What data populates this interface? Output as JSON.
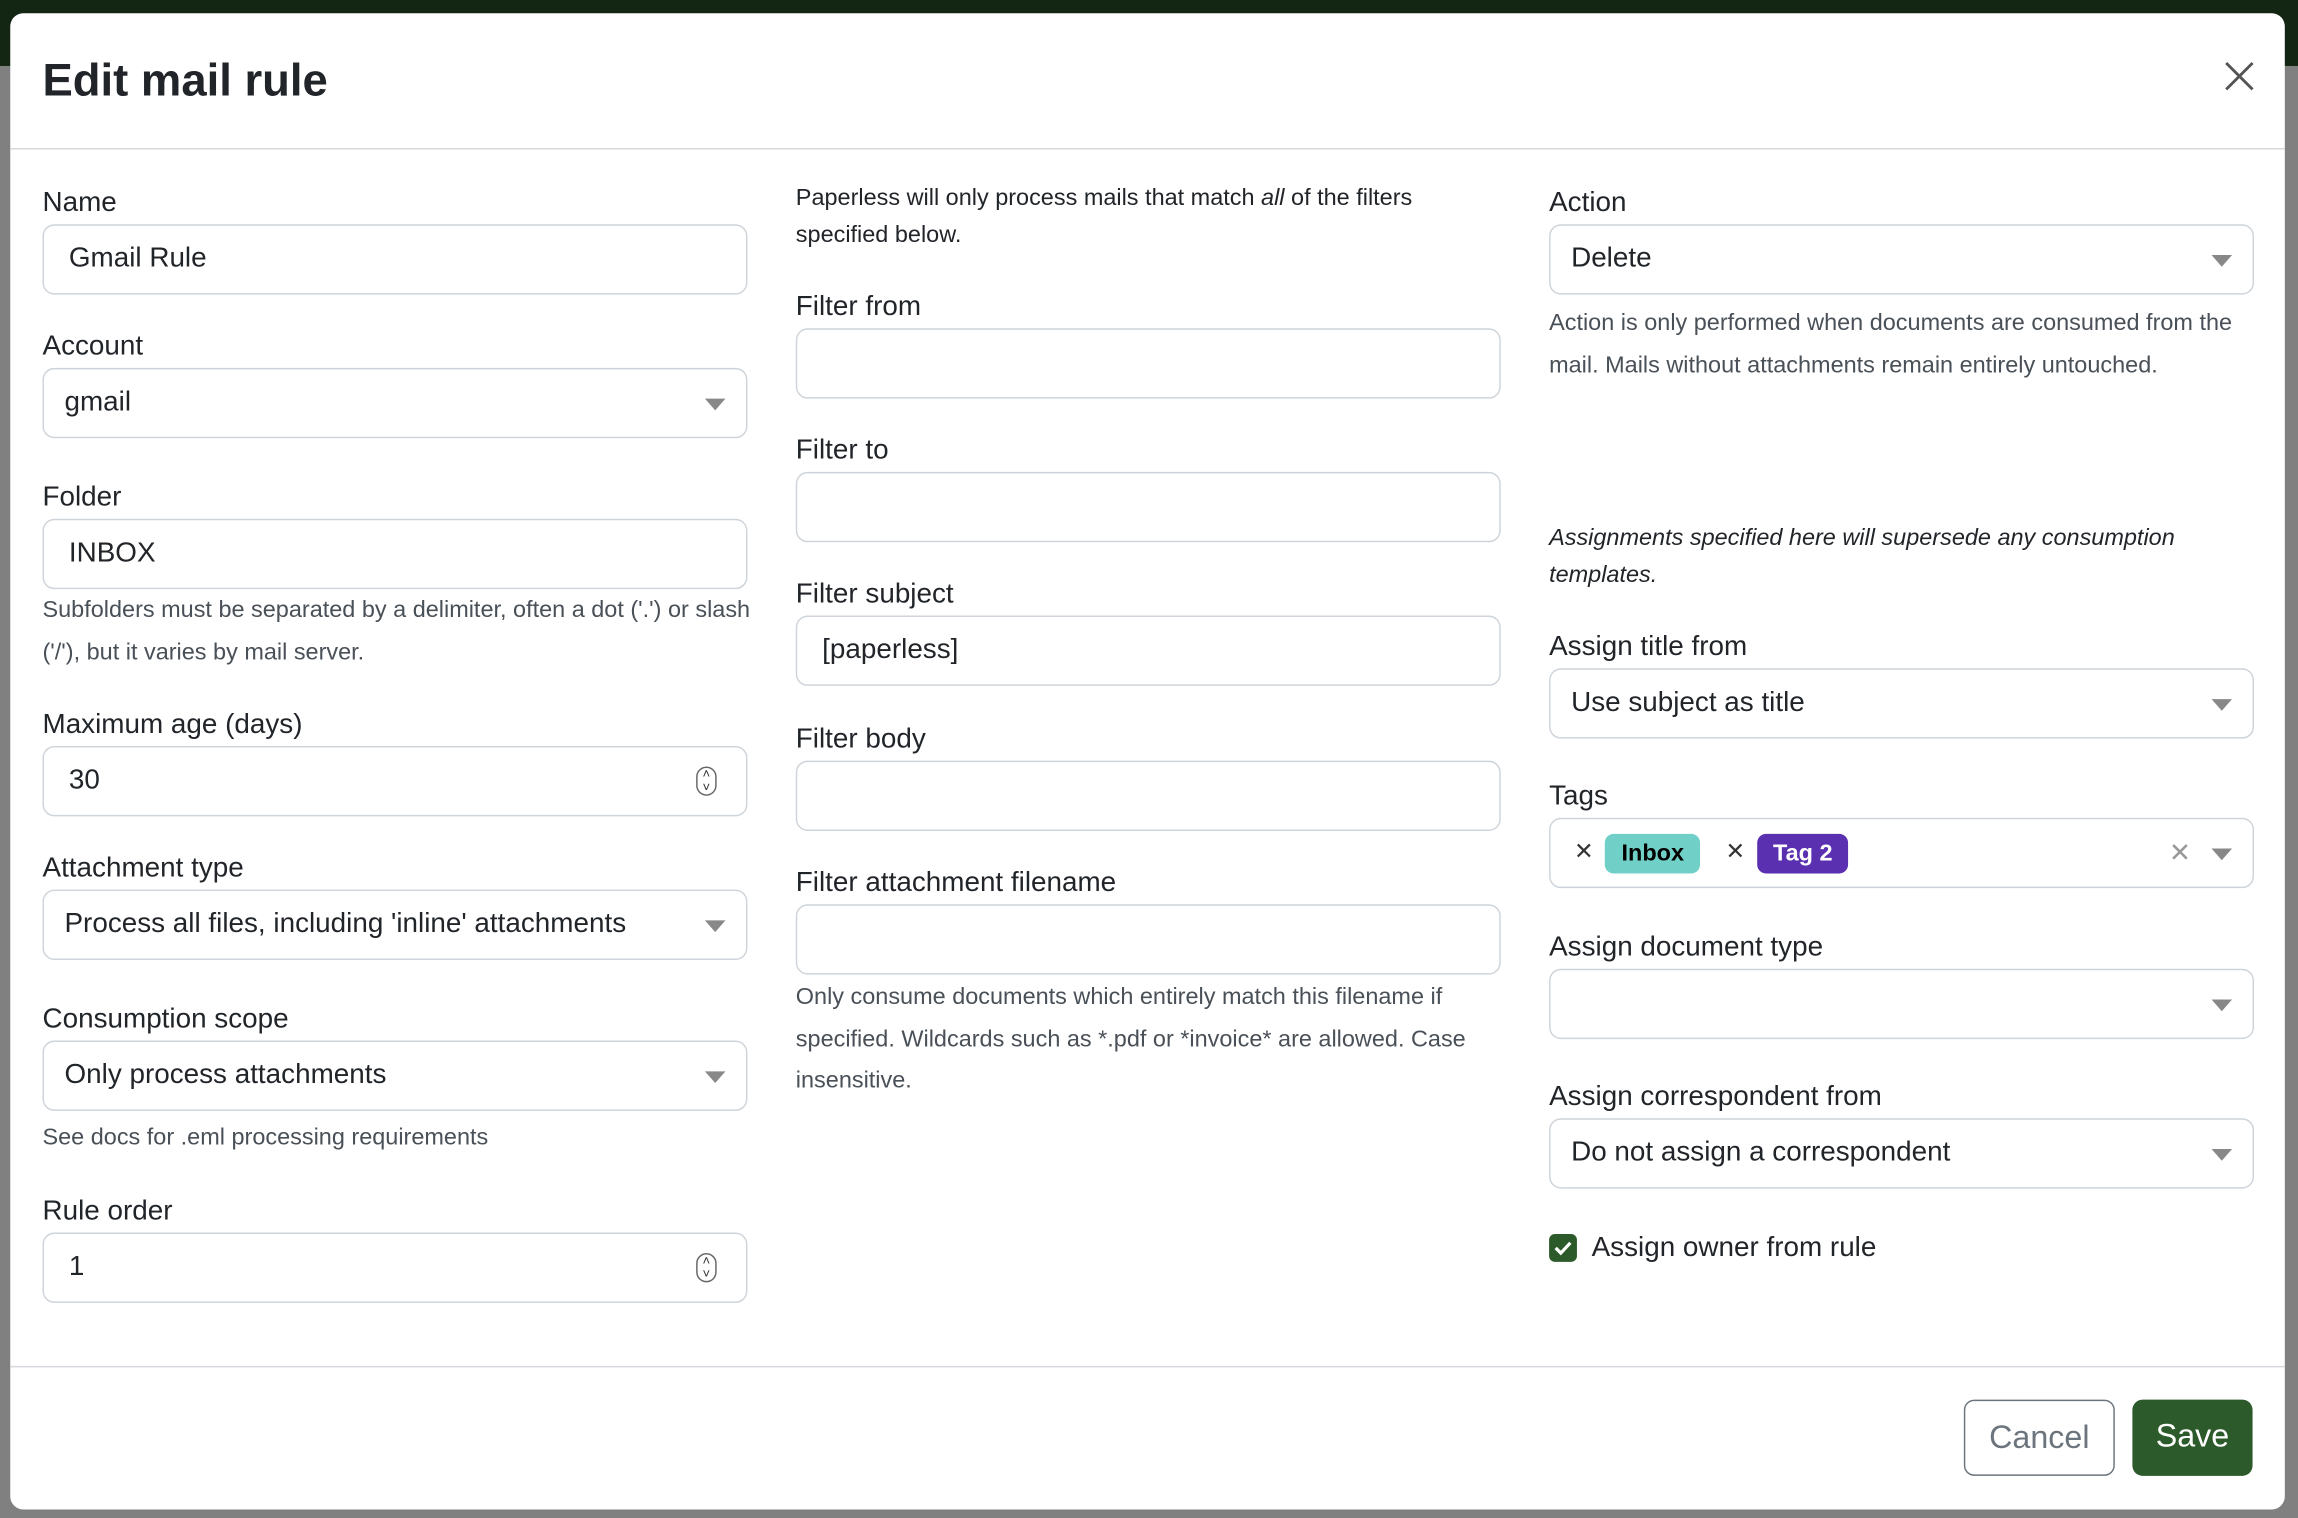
{
  "dialog": {
    "title": "Edit mail rule",
    "close_icon": "close-icon"
  },
  "col1": {
    "name": {
      "label": "Name",
      "value": "Gmail Rule"
    },
    "account": {
      "label": "Account",
      "value": "gmail"
    },
    "folder": {
      "label": "Folder",
      "value": "INBOX",
      "help": "Subfolders must be separated by a delimiter, often a dot ('.') or slash ('/'), but it varies by mail server."
    },
    "max_age": {
      "label": "Maximum age (days)",
      "value": "30"
    },
    "attachment_type": {
      "label": "Attachment type",
      "value": "Process all files, including 'inline' attachments"
    },
    "consumption_scope": {
      "label": "Consumption scope",
      "value": "Only process attachments",
      "help": "See docs for .eml processing requirements"
    },
    "rule_order": {
      "label": "Rule order",
      "value": "1"
    }
  },
  "col2": {
    "intro_pre": "Paperless will only process mails that match ",
    "intro_em": "all",
    "intro_post": " of the filters specified below.",
    "filter_from": {
      "label": "Filter from",
      "value": ""
    },
    "filter_to": {
      "label": "Filter to",
      "value": ""
    },
    "filter_subject": {
      "label": "Filter subject",
      "value": "[paperless]"
    },
    "filter_body": {
      "label": "Filter body",
      "value": ""
    },
    "filter_attachment": {
      "label": "Filter attachment filename",
      "value": "",
      "help": "Only consume documents which entirely match this filename if specified. Wildcards such as *.pdf or *invoice* are allowed. Case insensitive."
    }
  },
  "col3": {
    "action": {
      "label": "Action",
      "value": "Delete",
      "help": "Action is only performed when documents are consumed from the mail. Mails without attachments remain entirely untouched."
    },
    "assign_note": "Assignments specified here will supersede any consumption templates.",
    "assign_title": {
      "label": "Assign title from",
      "value": "Use subject as title"
    },
    "tags": {
      "label": "Tags",
      "items": [
        {
          "label": "Inbox",
          "bg": "#70d0c8",
          "fg": "#000000"
        },
        {
          "label": "Tag 2",
          "bg": "#5a30b0",
          "fg": "#ffffff"
        }
      ]
    },
    "doc_type": {
      "label": "Assign document type",
      "value": ""
    },
    "correspondent": {
      "label": "Assign correspondent from",
      "value": "Do not assign a correspondent"
    },
    "owner": {
      "label": "Assign owner from rule",
      "checked": true
    }
  },
  "footer": {
    "cancel": "Cancel",
    "save": "Save"
  },
  "colors": {
    "primary": "#2c5a2a",
    "topbar": "#132513",
    "backdrop": "#808080"
  }
}
